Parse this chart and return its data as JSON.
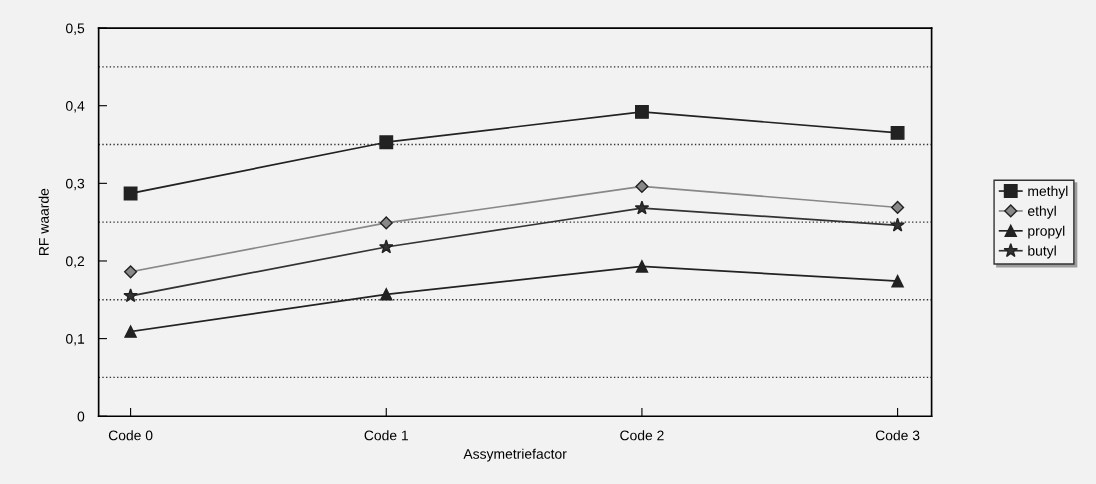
{
  "chart_data": {
    "type": "line",
    "xlabel": "Assymetriefactor",
    "ylabel": "RF waarde",
    "categories": [
      "Code 0",
      "Code 1",
      "Code 2",
      "Code 3"
    ],
    "ylim": [
      0,
      0.5
    ],
    "yticks": [
      {
        "value": 0,
        "label": "0"
      },
      {
        "value": 0.1,
        "label": "0,1"
      },
      {
        "value": 0.2,
        "label": "0,2"
      },
      {
        "value": 0.3,
        "label": "0,3"
      },
      {
        "value": 0.4,
        "label": "0,4"
      },
      {
        "value": 0.5,
        "label": "0,5"
      }
    ],
    "ref_lines": [
      {
        "axis": "y",
        "value": 0.05,
        "color": "#333333",
        "line_style": "dotted"
      },
      {
        "axis": "y",
        "value": 0.15,
        "color": "#333333",
        "line_style": "dotted"
      },
      {
        "axis": "y",
        "value": 0.25,
        "color": "#333333",
        "line_style": "dotted"
      },
      {
        "axis": "y",
        "value": 0.35,
        "color": "#333333",
        "line_style": "dotted"
      },
      {
        "axis": "y",
        "value": 0.45,
        "color": "#333333",
        "line_style": "dotted"
      }
    ],
    "grid": false,
    "legend": "right",
    "series": [
      {
        "name": "methyl",
        "color": "#222222",
        "marker": "square",
        "values": [
          0.287,
          0.353,
          0.392,
          0.365
        ]
      },
      {
        "name": "ethyl",
        "color": "#888888",
        "marker": "diamond",
        "values": [
          0.186,
          0.249,
          0.296,
          0.269
        ]
      },
      {
        "name": "propyl",
        "color": "#222222",
        "marker": "triangle",
        "values": [
          0.109,
          0.157,
          0.193,
          0.174
        ]
      },
      {
        "name": "butyl",
        "color": "#333333",
        "marker": "star",
        "values": [
          0.155,
          0.218,
          0.268,
          0.246
        ]
      }
    ]
  }
}
